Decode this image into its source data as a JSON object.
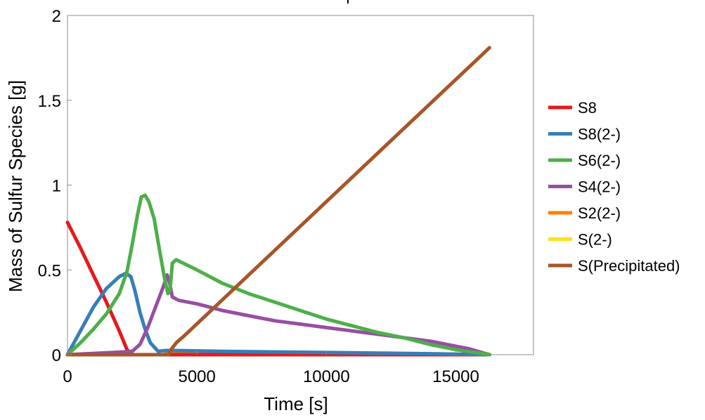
{
  "chart_data": {
    "type": "line",
    "xlabel": "Time [s]",
    "ylabel": "Mass of Sulfur Species [g]",
    "xlim": [
      0,
      18000
    ],
    "ylim": [
      0,
      2
    ],
    "x_ticks": [
      "0",
      "5000",
      "10000",
      "15000"
    ],
    "x_tick_values": [
      0,
      5000,
      10000,
      15000
    ],
    "y_ticks": [
      "0",
      "0.5",
      "1",
      "1.5",
      "2"
    ],
    "y_tick_values": [
      0,
      0.5,
      1,
      1.5,
      2
    ],
    "grid": false,
    "legend_position": "right",
    "series": [
      {
        "name": "S8",
        "color": "#e41a1c",
        "points": [
          [
            0,
            0.78
          ],
          [
            500,
            0.63
          ],
          [
            1000,
            0.47
          ],
          [
            1500,
            0.31
          ],
          [
            2000,
            0.14
          ],
          [
            2300,
            0.03
          ],
          [
            2500,
            0.0
          ],
          [
            16300,
            0.0
          ]
        ]
      },
      {
        "name": "S8(2-)",
        "color": "#377eb8",
        "points": [
          [
            0,
            0.0
          ],
          [
            500,
            0.14
          ],
          [
            1000,
            0.28
          ],
          [
            1500,
            0.39
          ],
          [
            2000,
            0.46
          ],
          [
            2250,
            0.48
          ],
          [
            2450,
            0.46
          ],
          [
            2600,
            0.38
          ],
          [
            2800,
            0.25
          ],
          [
            3000,
            0.15
          ],
          [
            3200,
            0.07
          ],
          [
            3500,
            0.02
          ],
          [
            3800,
            0.025
          ],
          [
            4000,
            0.025
          ],
          [
            6000,
            0.02
          ],
          [
            10000,
            0.013
          ],
          [
            14000,
            0.006
          ],
          [
            16300,
            0.0
          ]
        ]
      },
      {
        "name": "S6(2-)",
        "color": "#4daf4a",
        "points": [
          [
            0,
            0.0
          ],
          [
            500,
            0.07
          ],
          [
            1000,
            0.15
          ],
          [
            1500,
            0.24
          ],
          [
            2000,
            0.36
          ],
          [
            2300,
            0.49
          ],
          [
            2500,
            0.65
          ],
          [
            2700,
            0.82
          ],
          [
            2850,
            0.93
          ],
          [
            3000,
            0.94
          ],
          [
            3150,
            0.9
          ],
          [
            3350,
            0.8
          ],
          [
            3550,
            0.62
          ],
          [
            3750,
            0.45
          ],
          [
            3880,
            0.36
          ],
          [
            3960,
            0.38
          ],
          [
            4050,
            0.54
          ],
          [
            4200,
            0.56
          ],
          [
            5000,
            0.5
          ],
          [
            6000,
            0.42
          ],
          [
            7000,
            0.36
          ],
          [
            8000,
            0.31
          ],
          [
            9000,
            0.26
          ],
          [
            10000,
            0.21
          ],
          [
            11000,
            0.17
          ],
          [
            12000,
            0.13
          ],
          [
            13000,
            0.1
          ],
          [
            14000,
            0.06
          ],
          [
            15000,
            0.03
          ],
          [
            16300,
            0.0
          ]
        ]
      },
      {
        "name": "S4(2-)",
        "color": "#984ea3",
        "points": [
          [
            0,
            0.0
          ],
          [
            2000,
            0.015
          ],
          [
            2500,
            0.02
          ],
          [
            2800,
            0.06
          ],
          [
            3100,
            0.16
          ],
          [
            3400,
            0.28
          ],
          [
            3700,
            0.4
          ],
          [
            3850,
            0.47
          ],
          [
            3950,
            0.42
          ],
          [
            4050,
            0.34
          ],
          [
            4300,
            0.32
          ],
          [
            5000,
            0.3
          ],
          [
            6000,
            0.26
          ],
          [
            7000,
            0.23
          ],
          [
            8000,
            0.2
          ],
          [
            9000,
            0.18
          ],
          [
            10000,
            0.16
          ],
          [
            11000,
            0.14
          ],
          [
            12000,
            0.12
          ],
          [
            13000,
            0.1
          ],
          [
            14000,
            0.08
          ],
          [
            15000,
            0.05
          ],
          [
            15500,
            0.035
          ],
          [
            16300,
            0.0
          ]
        ]
      },
      {
        "name": "S2(2-)",
        "color": "#ff7f00",
        "points": [
          [
            0,
            0.0
          ],
          [
            3700,
            0.0
          ],
          [
            3900,
            0.01
          ],
          [
            4000,
            0.008
          ],
          [
            8000,
            0.005
          ],
          [
            16300,
            0.0
          ]
        ]
      },
      {
        "name": "S(2-)",
        "color": "#ffe119",
        "points": [
          [
            0,
            0.0
          ],
          [
            3800,
            0.0
          ],
          [
            4000,
            0.005
          ],
          [
            10000,
            0.004
          ],
          [
            16300,
            0.003
          ]
        ]
      },
      {
        "name": "S(Precipitated)",
        "color": "#a65628",
        "points": [
          [
            0,
            0.0
          ],
          [
            3900,
            0.0
          ],
          [
            4000,
            0.03
          ],
          [
            4200,
            0.07
          ],
          [
            4500,
            0.11
          ],
          [
            16300,
            1.81
          ]
        ]
      }
    ]
  }
}
